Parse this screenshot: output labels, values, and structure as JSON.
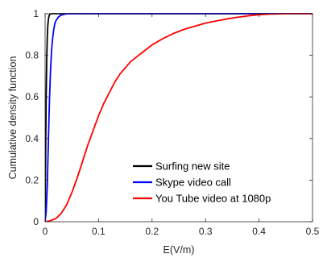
{
  "chart_data": {
    "type": "line",
    "title": "",
    "xlabel": "E(V/m)",
    "ylabel": "Cumulative density function",
    "xlim": [
      0,
      0.5
    ],
    "ylim": [
      0,
      1
    ],
    "xticks": [
      "0",
      "0.1",
      "0.2",
      "0.3",
      "0.4",
      "0.5"
    ],
    "yticks": [
      "0",
      "0.2",
      "0.4",
      "0.6",
      "0.8",
      "1"
    ],
    "grid": false,
    "legend_position": "bottom-right",
    "series": [
      {
        "name": "Surfing new site",
        "color": "#000000",
        "x": [
          0,
          0.0005,
          0.001,
          0.002,
          0.003,
          0.004,
          0.005,
          0.006,
          0.007,
          0.008,
          0.009,
          0.01,
          0.012,
          0.015,
          0.02,
          0.5
        ],
        "y": [
          0,
          0.15,
          0.33,
          0.6,
          0.78,
          0.88,
          0.94,
          0.97,
          0.985,
          0.993,
          0.997,
          0.999,
          1.0,
          1.0,
          1.0,
          1.0
        ]
      },
      {
        "name": "Skype video call",
        "color": "#0000ff",
        "x": [
          0,
          0.002,
          0.004,
          0.006,
          0.008,
          0.01,
          0.012,
          0.014,
          0.016,
          0.018,
          0.02,
          0.025,
          0.03,
          0.035,
          0.04,
          0.05,
          0.5
        ],
        "y": [
          0,
          0.05,
          0.17,
          0.37,
          0.57,
          0.72,
          0.82,
          0.88,
          0.92,
          0.95,
          0.965,
          0.985,
          0.993,
          0.997,
          0.999,
          1.0,
          1.0
        ]
      },
      {
        "name": "You Tube video at 1080p",
        "color": "#ff0000",
        "x": [
          0,
          0.01,
          0.02,
          0.03,
          0.04,
          0.05,
          0.06,
          0.07,
          0.08,
          0.09,
          0.1,
          0.11,
          0.12,
          0.13,
          0.14,
          0.15,
          0.16,
          0.17,
          0.18,
          0.19,
          0.2,
          0.22,
          0.24,
          0.26,
          0.28,
          0.3,
          0.32,
          0.34,
          0.36,
          0.38,
          0.4,
          0.42,
          0.44,
          0.46,
          0.5
        ],
        "y": [
          0,
          0.005,
          0.015,
          0.04,
          0.08,
          0.14,
          0.21,
          0.29,
          0.37,
          0.44,
          0.51,
          0.57,
          0.62,
          0.67,
          0.71,
          0.74,
          0.77,
          0.79,
          0.81,
          0.83,
          0.85,
          0.88,
          0.905,
          0.925,
          0.94,
          0.955,
          0.965,
          0.975,
          0.983,
          0.99,
          0.995,
          0.998,
          0.999,
          1.0,
          1.0
        ]
      }
    ]
  }
}
